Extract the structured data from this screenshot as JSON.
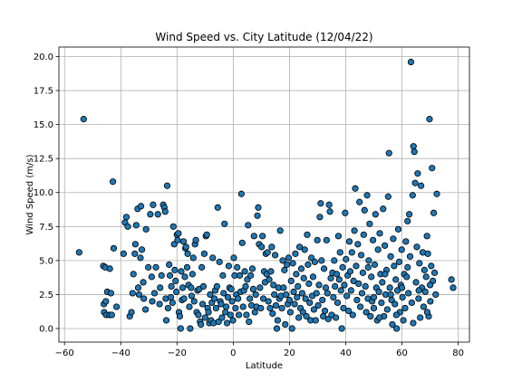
{
  "chart_data": {
    "type": "scatter",
    "title": "Wind Speed vs. City Latitude (12/04/22)",
    "xlabel": "Latitude",
    "ylabel": "Wind Speed (m/s)",
    "xlim": [
      -62,
      84
    ],
    "ylim": [
      -1.0,
      20.7
    ],
    "xticks": [
      -60,
      -40,
      -20,
      0,
      20,
      40,
      60,
      80
    ],
    "yticks": [
      0.0,
      2.5,
      5.0,
      7.5,
      10.0,
      12.5,
      15.0,
      17.5,
      20.0
    ],
    "xtick_labels": [
      "−60",
      "−40",
      "−20",
      "0",
      "20",
      "40",
      "60",
      "80"
    ],
    "ytick_labels": [
      "0.0",
      "2.5",
      "5.0",
      "7.5",
      "10.0",
      "12.5",
      "15.0",
      "17.5",
      "20.0"
    ],
    "grid": true,
    "marker_color": "#1f77b4",
    "marker_edge_color": "#000000",
    "points": [
      [
        -54.8,
        5.6
      ],
      [
        -53.2,
        15.4
      ],
      [
        -46.2,
        4.6
      ],
      [
        -45.5,
        4.5
      ],
      [
        -44.8,
        2.7
      ],
      [
        -45.9,
        1.2
      ],
      [
        -45.2,
        1.0
      ],
      [
        -44.0,
        1.0
      ],
      [
        -43.5,
        2.6
      ],
      [
        -43.9,
        4.4
      ],
      [
        -42.8,
        10.8
      ],
      [
        -42.5,
        5.9
      ],
      [
        -41.5,
        1.6
      ],
      [
        -46.0,
        1.8
      ],
      [
        -45.3,
        2.0
      ],
      [
        -43.2,
        1.0
      ],
      [
        -39.0,
        5.5
      ],
      [
        -38.5,
        7.8
      ],
      [
        -38.0,
        8.2
      ],
      [
        -37.5,
        7.5
      ],
      [
        -36.8,
        0.9
      ],
      [
        -36.2,
        1.2
      ],
      [
        -35.8,
        2.6
      ],
      [
        -35.5,
        4.0
      ],
      [
        -35.0,
        5.5
      ],
      [
        -34.8,
        6.2
      ],
      [
        -34.5,
        7.6
      ],
      [
        -34.0,
        8.8
      ],
      [
        -33.8,
        3.0
      ],
      [
        -33.5,
        2.5
      ],
      [
        -33.0,
        5.2
      ],
      [
        -32.8,
        9.0
      ],
      [
        -32.5,
        5.8
      ],
      [
        -32.0,
        3.4
      ],
      [
        -31.8,
        2.2
      ],
      [
        -31.2,
        1.4
      ],
      [
        -31.0,
        7.3
      ],
      [
        -30.2,
        4.5
      ],
      [
        -29.5,
        8.4
      ],
      [
        -29.0,
        3.8
      ],
      [
        -28.8,
        2.0
      ],
      [
        -28.5,
        9.1
      ],
      [
        -28.0,
        2.6
      ],
      [
        -27.5,
        4.5
      ],
      [
        -26.8,
        8.4
      ],
      [
        -26.2,
        1.8
      ],
      [
        -26.0,
        3.0
      ],
      [
        -25.5,
        3.9
      ],
      [
        -24.9,
        9.1
      ],
      [
        -24.5,
        8.9
      ],
      [
        -24.2,
        8.6
      ],
      [
        -24.0,
        2.2
      ],
      [
        -23.8,
        0.6
      ],
      [
        -23.5,
        10.5
      ],
      [
        -23.2,
        1.5
      ],
      [
        -22.8,
        4.7
      ],
      [
        -22.5,
        3.9
      ],
      [
        -22.2,
        2.3
      ],
      [
        -22.0,
        3.1
      ],
      [
        -21.6,
        1.9
      ],
      [
        -21.3,
        7.5
      ],
      [
        -21.0,
        6.2
      ],
      [
        -20.8,
        4.3
      ],
      [
        -20.5,
        3.5
      ],
      [
        -20.2,
        2.7
      ],
      [
        -20.0,
        6.9
      ],
      [
        -19.8,
        6.5
      ],
      [
        -19.5,
        7.0
      ],
      [
        -19.3,
        1.2
      ],
      [
        -19.0,
        0.9
      ],
      [
        -18.7,
        0.0
      ],
      [
        -18.5,
        4.2
      ],
      [
        -18.2,
        2.1
      ],
      [
        -18.0,
        3.0
      ],
      [
        -17.7,
        6.4
      ],
      [
        -17.5,
        2.2
      ],
      [
        -17.2,
        3.8
      ],
      [
        -17.0,
        5.9
      ],
      [
        -16.8,
        6.0
      ],
      [
        -16.4,
        4.5
      ],
      [
        -16.2,
        5.5
      ],
      [
        -15.9,
        3.2
      ],
      [
        -15.6,
        1.6
      ],
      [
        -15.3,
        0.0
      ],
      [
        -15.0,
        3.0
      ],
      [
        -14.8,
        2.4
      ],
      [
        -14.5,
        4.0
      ],
      [
        -14.2,
        5.2
      ],
      [
        -13.9,
        2.0
      ],
      [
        -13.6,
        6.2
      ],
      [
        -13.3,
        6.5
      ],
      [
        -13.0,
        1.2
      ],
      [
        -12.7,
        2.8
      ],
      [
        -12.4,
        1.0
      ],
      [
        -12.1,
        2.9
      ],
      [
        -11.8,
        0.5
      ],
      [
        -11.5,
        0.3
      ],
      [
        -11.2,
        4.5
      ],
      [
        -10.9,
        1.8
      ],
      [
        -10.6,
        3.1
      ],
      [
        -10.3,
        5.5
      ],
      [
        -10.0,
        0.8
      ],
      [
        -9.7,
        6.8
      ],
      [
        -9.4,
        6.9
      ],
      [
        -9.1,
        1.5
      ],
      [
        -8.8,
        1.2
      ],
      [
        -8.5,
        0.4
      ],
      [
        -8.2,
        2.5
      ],
      [
        -7.9,
        0.6
      ],
      [
        -7.6,
        1.9
      ],
      [
        -7.3,
        5.2
      ],
      [
        -7.0,
        0.4
      ],
      [
        -6.7,
        2.2
      ],
      [
        -6.4,
        2.8
      ],
      [
        -6.1,
        1.5
      ],
      [
        -5.8,
        3.1
      ],
      [
        -5.5,
        8.9
      ],
      [
        -5.2,
        0.5
      ],
      [
        -4.9,
        4.9
      ],
      [
        -4.6,
        2.0
      ],
      [
        -4.3,
        1.8
      ],
      [
        -4.0,
        0.8
      ],
      [
        -3.7,
        3.9
      ],
      [
        -3.4,
        2.6
      ],
      [
        -3.1,
        7.7
      ],
      [
        -2.8,
        1.2
      ],
      [
        -2.5,
        1.6
      ],
      [
        -2.2,
        0.4
      ],
      [
        -1.9,
        2.3
      ],
      [
        -1.6,
        4.6
      ],
      [
        -1.3,
        3.0
      ],
      [
        -1.0,
        1.0
      ],
      [
        -0.7,
        2.9
      ],
      [
        -0.4,
        2.0
      ],
      [
        -0.1,
        0.6
      ],
      [
        0.2,
        5.2
      ],
      [
        0.5,
        3.9
      ],
      [
        0.8,
        1.5
      ],
      [
        1.1,
        2.5
      ],
      [
        1.4,
        4.5
      ],
      [
        1.7,
        2.2
      ],
      [
        2.0,
        1.0
      ],
      [
        2.3,
        3.9
      ],
      [
        2.6,
        2.7
      ],
      [
        2.9,
        9.9
      ],
      [
        3.2,
        6.3
      ],
      [
        3.5,
        1.6
      ],
      [
        3.8,
        2.8
      ],
      [
        4.1,
        4.2
      ],
      [
        4.4,
        3.1
      ],
      [
        4.7,
        1.0
      ],
      [
        5.0,
        3.6
      ],
      [
        5.3,
        7.6
      ],
      [
        5.6,
        0.5
      ],
      [
        5.9,
        2.2
      ],
      [
        6.2,
        3.9
      ],
      [
        6.5,
        1.7
      ],
      [
        6.8,
        4.4
      ],
      [
        7.1,
        2.9
      ],
      [
        7.4,
        6.8
      ],
      [
        7.7,
        1.2
      ],
      [
        8.0,
        2.5
      ],
      [
        8.3,
        1.6
      ],
      [
        8.6,
        8.3
      ],
      [
        8.9,
        8.9
      ],
      [
        9.2,
        6.2
      ],
      [
        9.5,
        3.0
      ],
      [
        9.8,
        1.5
      ],
      [
        10.1,
        6.0
      ],
      [
        10.4,
        6.8
      ],
      [
        10.7,
        2.2
      ],
      [
        11.0,
        4.2
      ],
      [
        11.3,
        3.4
      ],
      [
        11.6,
        5.5
      ],
      [
        11.9,
        4.0
      ],
      [
        12.2,
        5.6
      ],
      [
        12.5,
        2.0
      ],
      [
        12.8,
        3.6
      ],
      [
        13.1,
        1.5
      ],
      [
        13.4,
        4.2
      ],
      [
        13.7,
        6.0
      ],
      [
        14.0,
        1.1
      ],
      [
        14.3,
        3.2
      ],
      [
        14.6,
        2.5
      ],
      [
        14.9,
        5.4
      ],
      [
        15.2,
        1.7
      ],
      [
        15.5,
        0.0
      ],
      [
        15.8,
        0.6
      ],
      [
        16.1,
        3.0
      ],
      [
        16.4,
        2.2
      ],
      [
        16.7,
        7.2
      ],
      [
        17.0,
        2.4
      ],
      [
        17.3,
        1.5
      ],
      [
        17.6,
        5.0
      ],
      [
        17.9,
        3.0
      ],
      [
        18.2,
        4.3
      ],
      [
        18.5,
        0.3
      ],
      [
        18.8,
        2.5
      ],
      [
        19.1,
        4.7
      ],
      [
        19.4,
        1.8
      ],
      [
        19.7,
        5.2
      ],
      [
        20.0,
        2.1
      ],
      [
        20.3,
        1.2
      ],
      [
        20.6,
        3.5
      ],
      [
        20.9,
        0.0
      ],
      [
        21.2,
        4.8
      ],
      [
        21.5,
        2.7
      ],
      [
        21.8,
        1.8
      ],
      [
        22.1,
        5.5
      ],
      [
        22.4,
        4.0
      ],
      [
        22.7,
        2.3
      ],
      [
        23.0,
        3.1
      ],
      [
        23.3,
        0.8
      ],
      [
        23.6,
        6.0
      ],
      [
        23.9,
        1.5
      ],
      [
        24.2,
        4.4
      ],
      [
        24.5,
        2.6
      ],
      [
        24.8,
        1.2
      ],
      [
        25.1,
        3.7
      ],
      [
        25.4,
        5.8
      ],
      [
        25.7,
        2.2
      ],
      [
        26.0,
        0.9
      ],
      [
        26.3,
        6.9
      ],
      [
        26.6,
        4.7
      ],
      [
        26.9,
        3.3
      ],
      [
        27.2,
        1.9
      ],
      [
        27.5,
        0.6
      ],
      [
        27.8,
        5.2
      ],
      [
        28.1,
        2.4
      ],
      [
        28.4,
        3.8
      ],
      [
        28.7,
        1.4
      ],
      [
        29.0,
        4.9
      ],
      [
        29.3,
        0.6
      ],
      [
        29.6,
        2.6
      ],
      [
        29.9,
        6.5
      ],
      [
        30.2,
        1.7
      ],
      [
        30.5,
        3.2
      ],
      [
        30.8,
        8.2
      ],
      [
        31.1,
        9.2
      ],
      [
        31.4,
        5.0
      ],
      [
        31.7,
        2.1
      ],
      [
        32.0,
        0.9
      ],
      [
        32.3,
        4.4
      ],
      [
        32.6,
        1.3
      ],
      [
        32.9,
        3.0
      ],
      [
        33.2,
        6.5
      ],
      [
        33.5,
        2.6
      ],
      [
        33.8,
        0.7
      ],
      [
        34.1,
        9.1
      ],
      [
        34.4,
        8.6
      ],
      [
        34.7,
        3.7
      ],
      [
        35.0,
        1.0
      ],
      [
        35.3,
        4.1
      ],
      [
        35.6,
        2.3
      ],
      [
        35.9,
        5.0
      ],
      [
        36.2,
        3.1
      ],
      [
        36.5,
        0.8
      ],
      [
        36.8,
        4.0
      ],
      [
        37.1,
        1.9
      ],
      [
        37.4,
        6.8
      ],
      [
        37.7,
        3.6
      ],
      [
        38.0,
        5.6
      ],
      [
        38.3,
        2.8
      ],
      [
        38.6,
        0.0
      ],
      [
        38.9,
        4.5
      ],
      [
        39.2,
        1.5
      ],
      [
        39.5,
        3.2
      ],
      [
        39.8,
        8.5
      ],
      [
        40.1,
        5.1
      ],
      [
        40.4,
        2.4
      ],
      [
        40.7,
        3.9
      ],
      [
        41.0,
        1.3
      ],
      [
        41.3,
        6.4
      ],
      [
        41.6,
        4.2
      ],
      [
        41.9,
        2.8
      ],
      [
        42.2,
        5.6
      ],
      [
        42.5,
        1.0
      ],
      [
        42.8,
        3.5
      ],
      [
        43.1,
        7.2
      ],
      [
        43.4,
        10.3
      ],
      [
        43.7,
        4.6
      ],
      [
        44.0,
        2.1
      ],
      [
        44.3,
        6.2
      ],
      [
        44.6,
        3.3
      ],
      [
        44.9,
        9.3
      ],
      [
        45.2,
        1.6
      ],
      [
        45.5,
        5.4
      ],
      [
        45.8,
        2.6
      ],
      [
        46.1,
        4.1
      ],
      [
        46.4,
        6.9
      ],
      [
        46.7,
        8.7
      ],
      [
        47.0,
        3.1
      ],
      [
        47.3,
        1.2
      ],
      [
        47.6,
        9.8
      ],
      [
        47.9,
        2.2
      ],
      [
        48.2,
        5.0
      ],
      [
        48.5,
        7.7
      ],
      [
        48.8,
        0.9
      ],
      [
        49.1,
        3.8
      ],
      [
        49.4,
        2.0
      ],
      [
        49.7,
        6.5
      ],
      [
        50.0,
        1.5
      ],
      [
        50.3,
        4.7
      ],
      [
        50.6,
        8.4
      ],
      [
        50.9,
        3.0
      ],
      [
        51.2,
        0.6
      ],
      [
        51.5,
        5.8
      ],
      [
        51.8,
        2.7
      ],
      [
        52.1,
        7.0
      ],
      [
        52.4,
        4.0
      ],
      [
        52.7,
        1.9
      ],
      [
        53.0,
        3.4
      ],
      [
        53.3,
        8.8
      ],
      [
        53.6,
        0.9
      ],
      [
        53.9,
        6.1
      ],
      [
        54.2,
        2.5
      ],
      [
        54.5,
        4.3
      ],
      [
        54.8,
        1.4
      ],
      [
        55.1,
        9.7
      ],
      [
        55.4,
        12.9
      ],
      [
        55.7,
        3.0
      ],
      [
        56.0,
        5.3
      ],
      [
        56.3,
        2.1
      ],
      [
        56.6,
        0.3
      ],
      [
        56.9,
        6.6
      ],
      [
        57.2,
        4.6
      ],
      [
        57.5,
        1.8
      ],
      [
        57.8,
        3.6
      ],
      [
        58.1,
        0.0
      ],
      [
        58.4,
        2.8
      ],
      [
        58.7,
        7.3
      ],
      [
        59.0,
        4.9
      ],
      [
        59.3,
        1.2
      ],
      [
        59.6,
        3.2
      ],
      [
        59.9,
        5.8
      ],
      [
        60.2,
        2.3
      ],
      [
        60.5,
        0.6
      ],
      [
        60.8,
        4.0
      ],
      [
        61.1,
        1.5
      ],
      [
        61.4,
        6.4
      ],
      [
        61.7,
        3.8
      ],
      [
        62.0,
        7.9
      ],
      [
        62.3,
        2.6
      ],
      [
        62.6,
        8.4
      ],
      [
        62.9,
        5.3
      ],
      [
        63.2,
        19.6
      ],
      [
        63.5,
        1.9
      ],
      [
        63.8,
        9.8
      ],
      [
        64.1,
        13.4
      ],
      [
        64.4,
        13.0
      ],
      [
        64.7,
        10.7
      ],
      [
        65.0,
        3.4
      ],
      [
        65.3,
        6.0
      ],
      [
        65.6,
        11.4
      ],
      [
        65.9,
        2.2
      ],
      [
        66.2,
        4.8
      ],
      [
        66.5,
        0.8
      ],
      [
        66.8,
        10.5
      ],
      [
        67.1,
        3.0
      ],
      [
        67.4,
        5.6
      ],
      [
        67.7,
        1.6
      ],
      [
        68.0,
        4.3
      ],
      [
        68.3,
        2.7
      ],
      [
        68.6,
        3.8
      ],
      [
        68.9,
        6.8
      ],
      [
        69.2,
        5.5
      ],
      [
        69.5,
        0.9
      ],
      [
        69.8,
        15.4
      ],
      [
        70.1,
        2.0
      ],
      [
        70.4,
        4.6
      ],
      [
        70.7,
        11.8
      ],
      [
        71.0,
        3.5
      ],
      [
        71.3,
        8.5
      ],
      [
        71.6,
        4.1
      ],
      [
        72.0,
        2.5
      ],
      [
        72.4,
        9.9
      ],
      [
        77.6,
        3.6
      ],
      [
        78.2,
        3.0
      ],
      [
        70.0,
        3.2
      ],
      [
        69.0,
        1.2
      ],
      [
        66.0,
        2.8
      ],
      [
        64.0,
        0.4
      ],
      [
        62.0,
        4.5
      ],
      [
        60.0,
        3.0
      ],
      [
        58.0,
        1.0
      ],
      [
        56.0,
        2.5
      ],
      [
        54.0,
        4.0
      ],
      [
        52.0,
        0.8
      ],
      [
        50.0,
        2.3
      ],
      [
        48.0,
        4.5
      ]
    ]
  }
}
